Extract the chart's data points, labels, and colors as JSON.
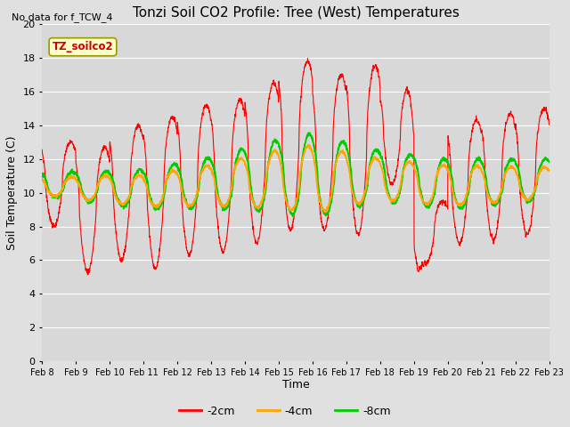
{
  "title": "Tonzi Soil CO2 Profile: Tree (West) Temperatures",
  "subtitle": "No data for f_TCW_4",
  "ylabel": "Soil Temperature (C)",
  "xlabel": "Time",
  "legend_label": "TZ_soilco2",
  "ylim": [
    0,
    20
  ],
  "fig_bg_color": "#e0e0e0",
  "plot_bg_color": "#d8d8d8",
  "grid_color": "#ffffff",
  "line_colors": {
    "-2cm": "#ff0000",
    "-4cm": "#ffa500",
    "-8cm": "#00cc00"
  },
  "x_tick_labels": [
    "Feb 8",
    "Feb 9",
    "Feb 10",
    "Feb 11",
    "Feb 12",
    "Feb 13",
    "Feb 14",
    "Feb 15",
    "Feb 16",
    "Feb 17",
    "Feb 18",
    "Feb 19",
    "Feb 20",
    "Feb 21",
    "Feb 22",
    "Feb 23"
  ],
  "n_days": 15,
  "points_per_day": 144
}
